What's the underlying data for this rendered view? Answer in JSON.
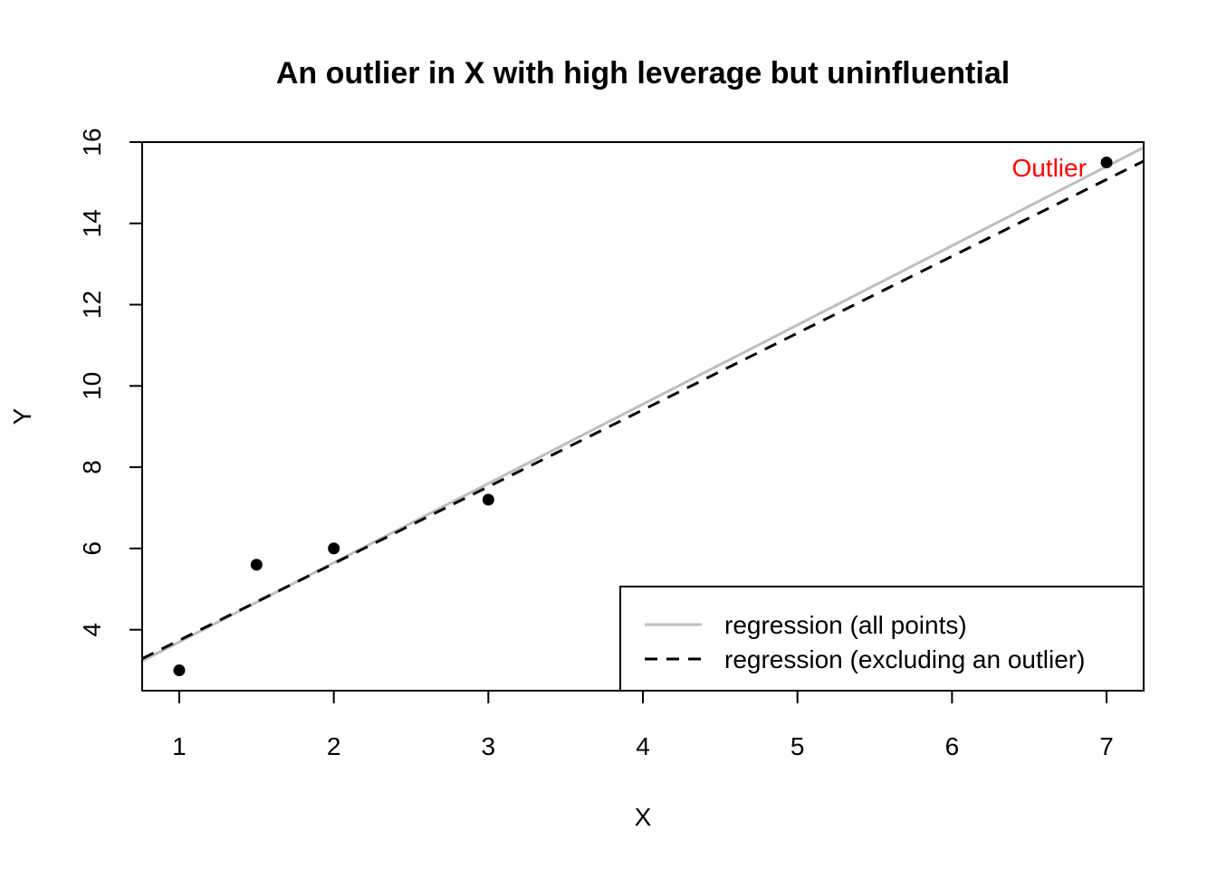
{
  "chart_data": {
    "type": "scatter",
    "title": "An outlier in X with high leverage but uninfluential",
    "xlabel": "X",
    "ylabel": "Y",
    "xlim": [
      0.76,
      7.24
    ],
    "ylim": [
      2.5,
      16
    ],
    "x_ticks": [
      1,
      2,
      3,
      4,
      5,
      6,
      7
    ],
    "y_ticks": [
      4,
      6,
      8,
      10,
      12,
      14,
      16
    ],
    "points": [
      {
        "x": 1.0,
        "y": 3.0
      },
      {
        "x": 1.5,
        "y": 5.6
      },
      {
        "x": 2.0,
        "y": 6.0
      },
      {
        "x": 3.0,
        "y": 7.2
      },
      {
        "x": 7.0,
        "y": 15.5
      }
    ],
    "lines": [
      {
        "name": "regression (all points)",
        "intercept": 1.75,
        "slope": 1.95,
        "color": "#bebebe",
        "dash": "solid"
      },
      {
        "name": "regression (excluding an outlier)",
        "intercept": 1.85,
        "slope": 1.89,
        "color": "#000000",
        "dash": "dashed"
      }
    ],
    "annotation": {
      "text": "Outlier",
      "x": 6.5,
      "y": 15.2,
      "color": "#ff0000"
    },
    "legend": {
      "position": "bottom-right",
      "entries": [
        "regression (all points)",
        "regression (excluding an outlier)"
      ]
    },
    "grid": false
  }
}
